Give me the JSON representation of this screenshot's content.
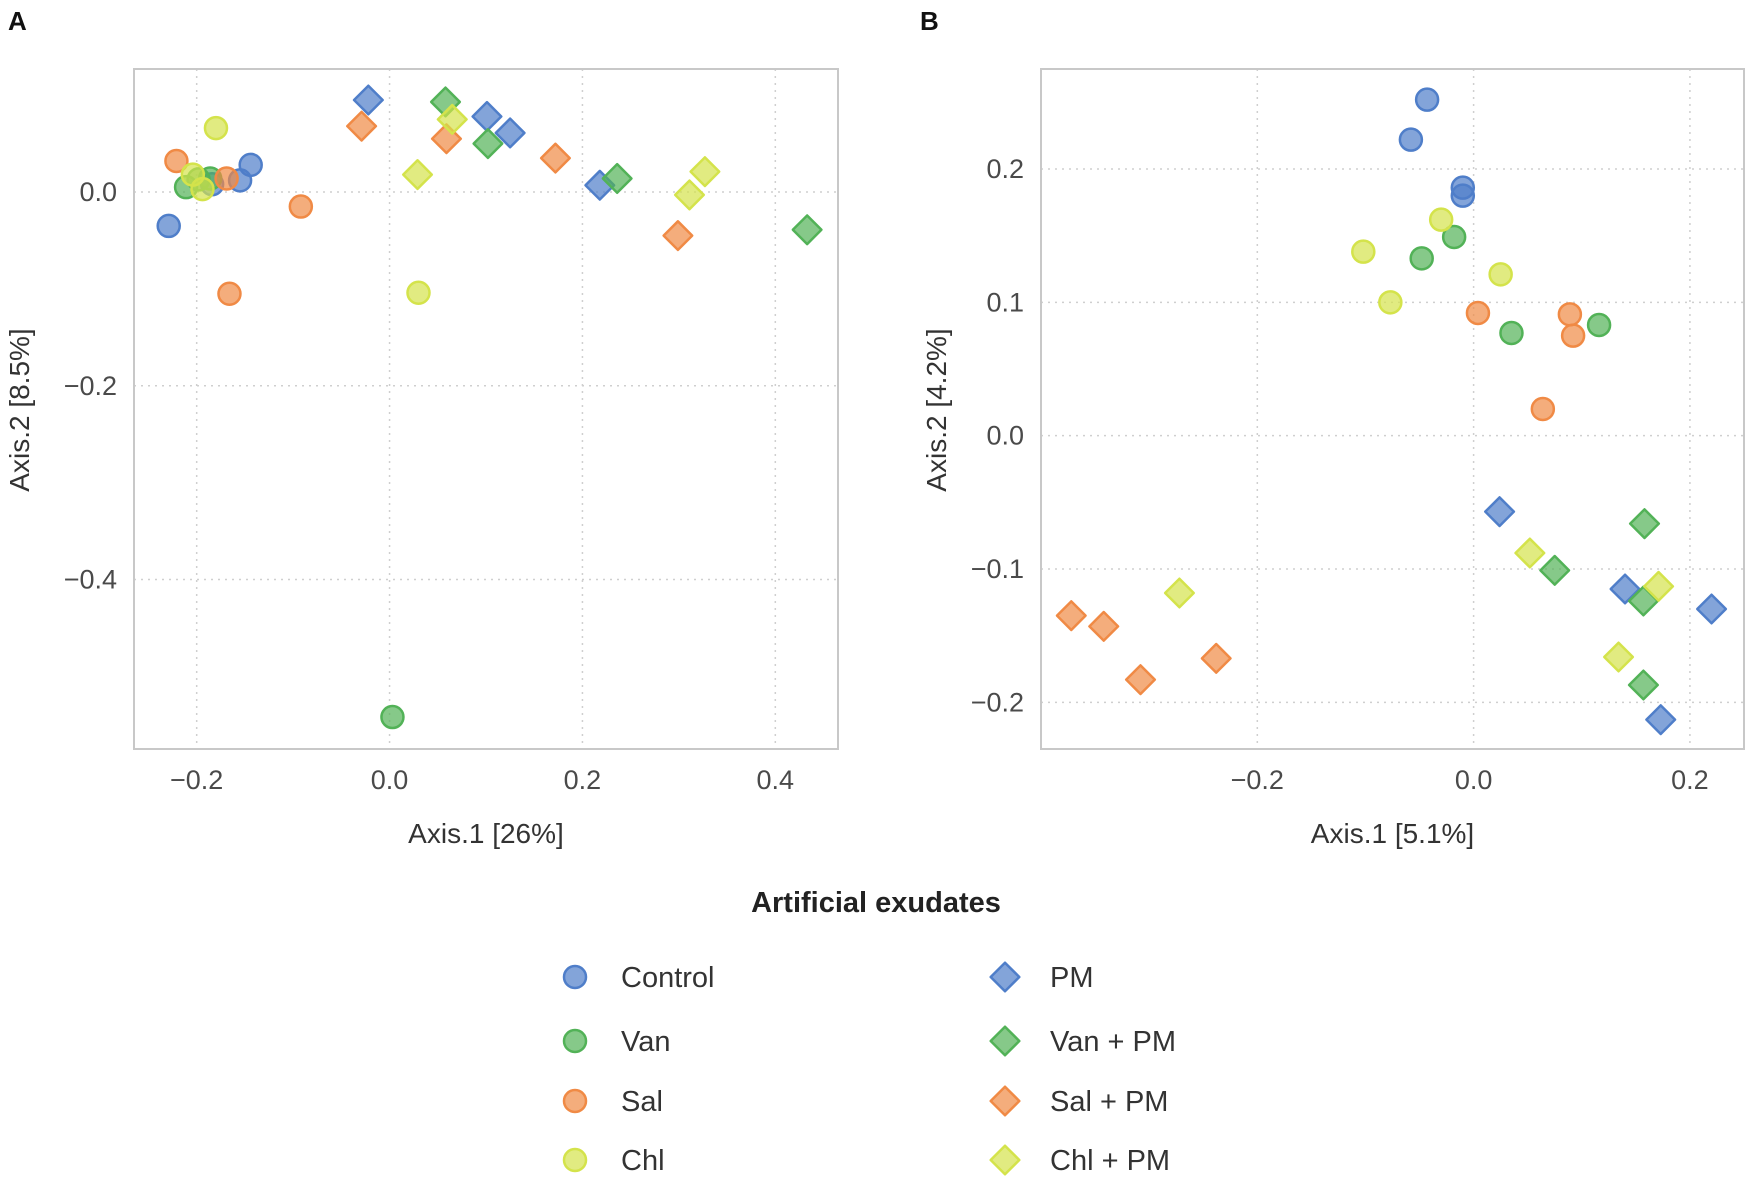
{
  "groups": [
    {
      "key": "control",
      "label": "Control",
      "shape": "circle",
      "color": "#4f7ec9"
    },
    {
      "key": "van",
      "label": "Van",
      "shape": "circle",
      "color": "#52b257"
    },
    {
      "key": "sal",
      "label": "Sal",
      "shape": "circle",
      "color": "#f08a45"
    },
    {
      "key": "chl",
      "label": "Chl",
      "shape": "circle",
      "color": "#d4e34b"
    },
    {
      "key": "pm",
      "label": "PM",
      "shape": "diamond",
      "color": "#4f7ec9"
    },
    {
      "key": "vanpm",
      "label": "Van + PM",
      "shape": "diamond",
      "color": "#52b257"
    },
    {
      "key": "salpm",
      "label": "Sal + PM",
      "shape": "diamond",
      "color": "#f08a45"
    },
    {
      "key": "chlpm",
      "label": "Chl + PM",
      "shape": "diamond",
      "color": "#d4e34b"
    }
  ],
  "legend": {
    "title": "Artificial exudates"
  },
  "chart_data": [
    {
      "panel": "A",
      "type": "scatter",
      "xlabel": "Axis.1   [26%]",
      "ylabel": "Axis.2   [8.5%]",
      "xlim": [
        -0.265,
        0.465
      ],
      "ylim": [
        -0.575,
        0.127
      ],
      "xticks": [
        -0.2,
        0.0,
        0.2,
        0.4
      ],
      "xtick_labels": [
        "−0.2",
        "0.0",
        "0.2",
        "0.4"
      ],
      "yticks": [
        0.0,
        -0.2,
        -0.4
      ],
      "ytick_labels": [
        "0.0",
        "−0.2",
        "−0.4"
      ],
      "grid": true,
      "series": [
        {
          "group": "control",
          "points": [
            [
              -0.229,
              -0.035
            ],
            [
              -0.144,
              0.028
            ],
            [
              -0.155,
              0.012
            ],
            [
              -0.184,
              0.008
            ]
          ]
        },
        {
          "group": "van",
          "points": [
            [
              -0.211,
              0.005
            ],
            [
              -0.198,
              0.013
            ],
            [
              -0.186,
              0.014
            ],
            [
              0.003,
              -0.542
            ]
          ]
        },
        {
          "group": "sal",
          "points": [
            [
              -0.221,
              0.032
            ],
            [
              -0.169,
              0.014
            ],
            [
              -0.092,
              -0.015
            ],
            [
              -0.166,
              -0.105
            ]
          ]
        },
        {
          "group": "chl",
          "points": [
            [
              -0.18,
              0.066
            ],
            [
              -0.204,
              0.018
            ],
            [
              -0.194,
              0.003
            ],
            [
              0.03,
              -0.104
            ]
          ]
        },
        {
          "group": "pm",
          "points": [
            [
              -0.022,
              0.095
            ],
            [
              0.101,
              0.078
            ],
            [
              0.125,
              0.061
            ],
            [
              0.218,
              0.007
            ]
          ]
        },
        {
          "group": "vanpm",
          "points": [
            [
              0.058,
              0.093
            ],
            [
              0.102,
              0.05
            ],
            [
              0.236,
              0.014
            ],
            [
              0.433,
              -0.039
            ]
          ]
        },
        {
          "group": "salpm",
          "points": [
            [
              -0.029,
              0.068
            ],
            [
              0.059,
              0.055
            ],
            [
              0.172,
              0.035
            ],
            [
              0.299,
              -0.045
            ]
          ]
        },
        {
          "group": "chlpm",
          "points": [
            [
              0.065,
              0.075
            ],
            [
              0.029,
              0.018
            ],
            [
              0.311,
              -0.003
            ],
            [
              0.327,
              0.021
            ]
          ]
        }
      ]
    },
    {
      "panel": "B",
      "type": "scatter",
      "xlabel": "Axis.1   [5.1%]",
      "ylabel": "Axis.2   [4.2%]",
      "xlim": [
        -0.4,
        0.25
      ],
      "ylim": [
        -0.235,
        0.275
      ],
      "xticks": [
        -0.2,
        0.0,
        0.2
      ],
      "xtick_labels": [
        "−0.2",
        "0.0",
        "0.2"
      ],
      "yticks": [
        0.2,
        0.1,
        0.0,
        -0.1,
        -0.2
      ],
      "ytick_labels": [
        "0.2",
        "0.1",
        "0.0",
        "−0.1",
        "−0.2"
      ],
      "grid": true,
      "series": [
        {
          "group": "control",
          "points": [
            [
              -0.043,
              0.252
            ],
            [
              -0.058,
              0.222
            ],
            [
              -0.01,
              0.186
            ],
            [
              -0.01,
              0.18
            ]
          ]
        },
        {
          "group": "van",
          "points": [
            [
              -0.018,
              0.149
            ],
            [
              -0.048,
              0.133
            ],
            [
              0.035,
              0.077
            ],
            [
              0.116,
              0.083
            ]
          ]
        },
        {
          "group": "sal",
          "points": [
            [
              0.004,
              0.092
            ],
            [
              0.089,
              0.091
            ],
            [
              0.092,
              0.075
            ],
            [
              0.064,
              0.02
            ]
          ]
        },
        {
          "group": "chl",
          "points": [
            [
              -0.03,
              0.162
            ],
            [
              -0.102,
              0.138
            ],
            [
              -0.077,
              0.1
            ],
            [
              0.025,
              0.121
            ]
          ]
        },
        {
          "group": "pm",
          "points": [
            [
              0.024,
              -0.057
            ],
            [
              0.14,
              -0.115
            ],
            [
              0.22,
              -0.13
            ],
            [
              0.173,
              -0.213
            ]
          ]
        },
        {
          "group": "vanpm",
          "points": [
            [
              0.158,
              -0.066
            ],
            [
              0.075,
              -0.101
            ],
            [
              0.157,
              -0.124
            ],
            [
              0.157,
              -0.187
            ]
          ]
        },
        {
          "group": "salpm",
          "points": [
            [
              -0.372,
              -0.135
            ],
            [
              -0.342,
              -0.143
            ],
            [
              -0.308,
              -0.183
            ],
            [
              -0.238,
              -0.167
            ]
          ]
        },
        {
          "group": "chlpm",
          "points": [
            [
              -0.272,
              -0.118
            ],
            [
              0.052,
              -0.088
            ],
            [
              0.171,
              -0.113
            ],
            [
              0.134,
              -0.166
            ]
          ]
        }
      ]
    }
  ]
}
